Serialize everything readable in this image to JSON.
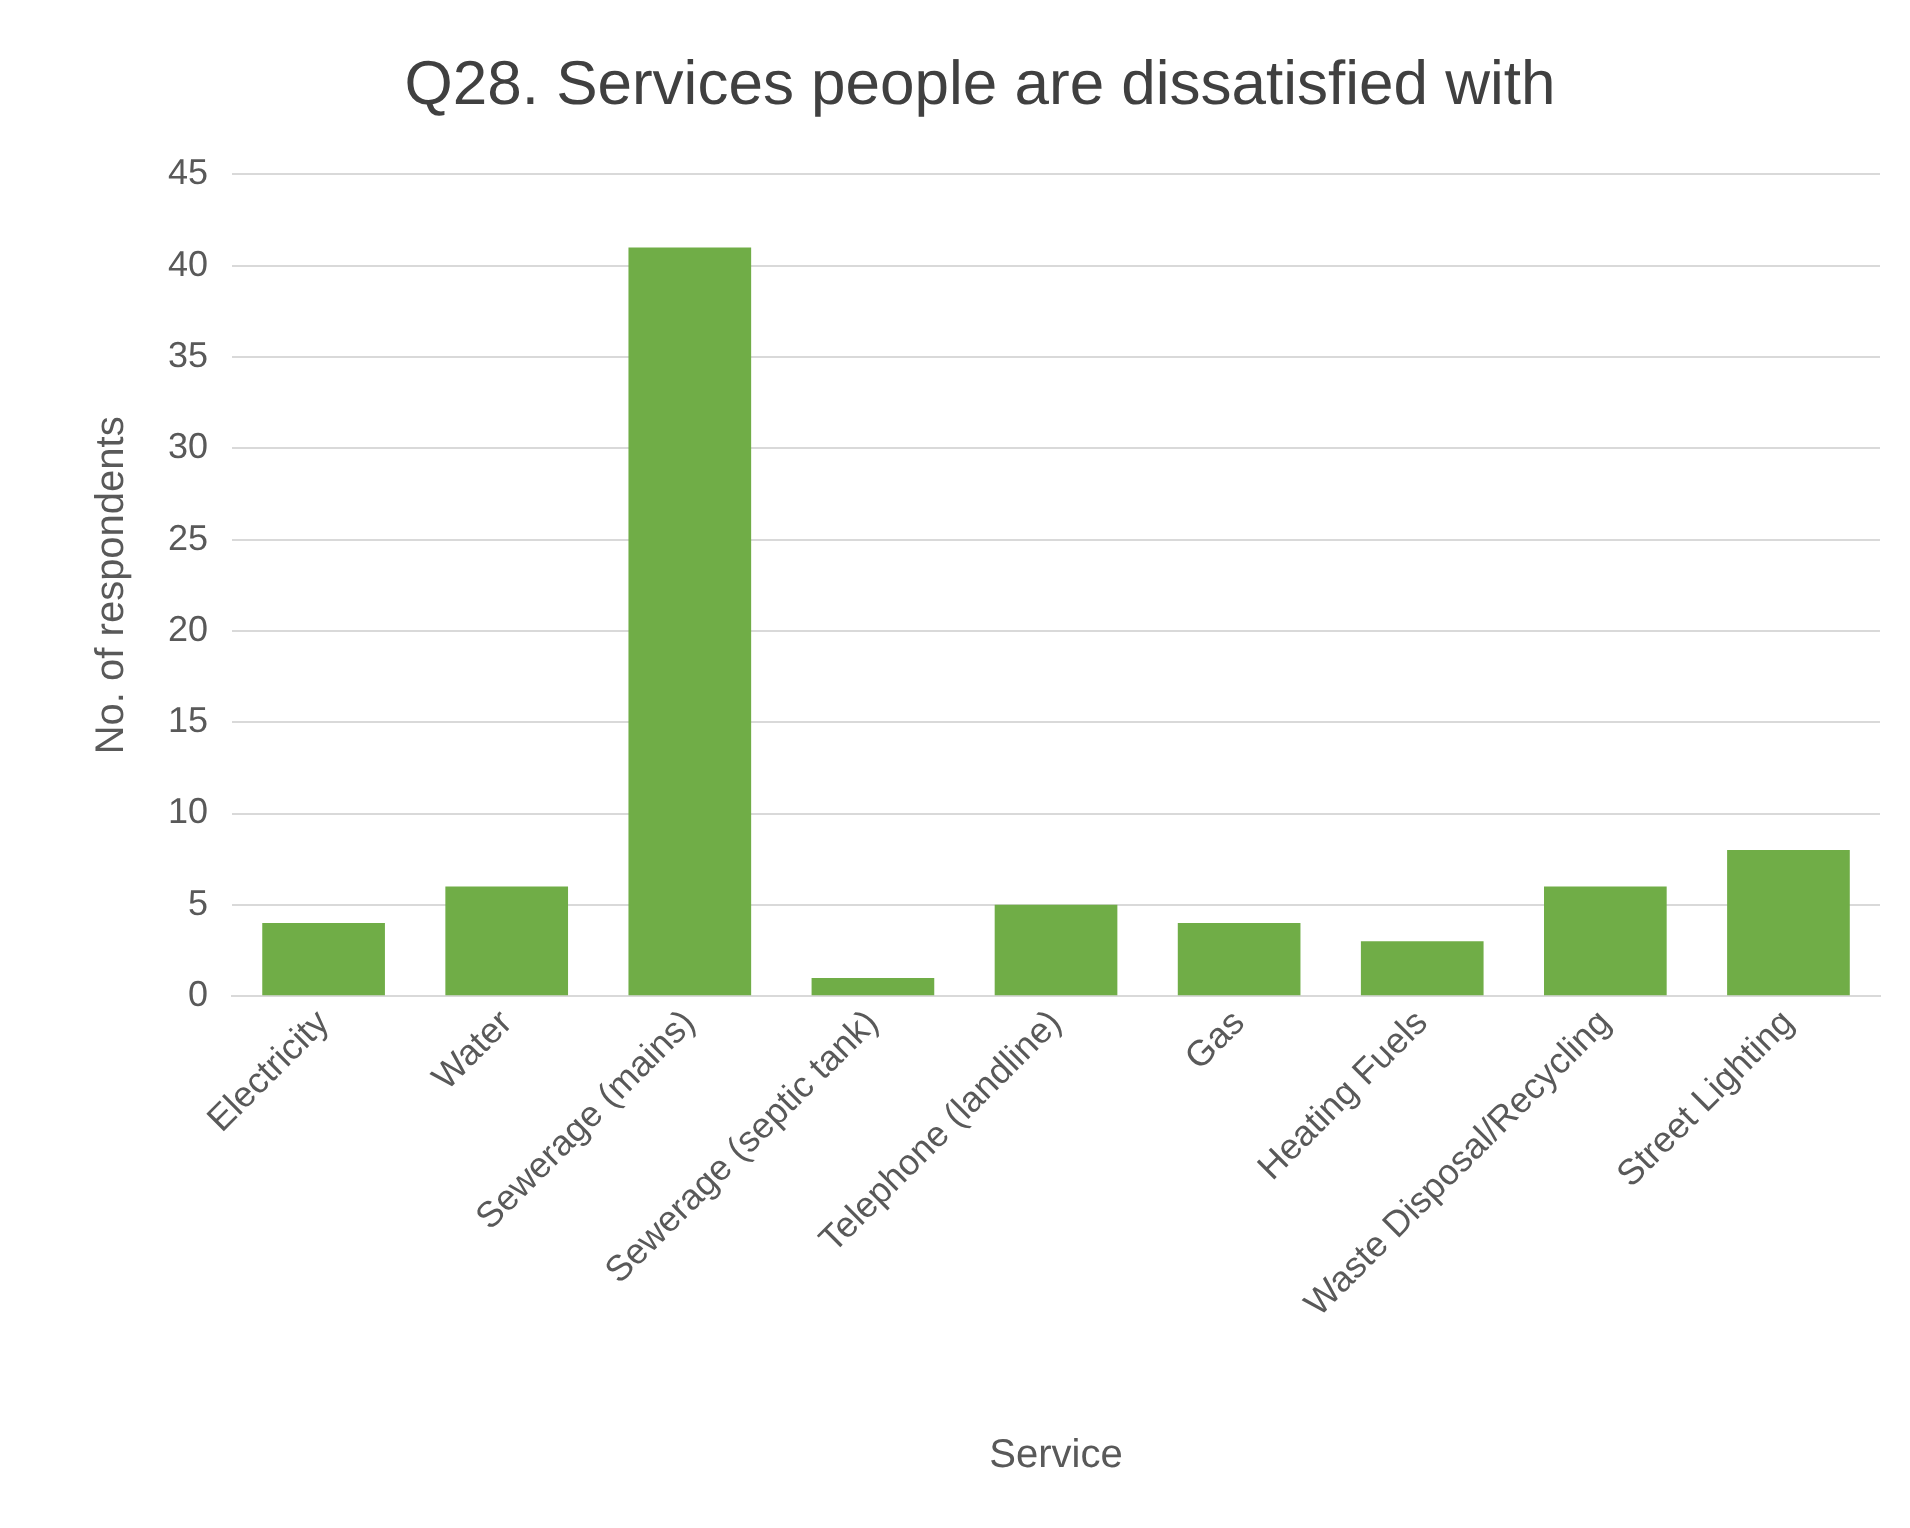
{
  "chart_data": {
    "type": "bar",
    "title": "Q28. Services people are dissatisfied with",
    "xlabel": "Service",
    "ylabel": "No. of respondents",
    "categories": [
      "Electricity",
      "Water",
      "Sewerage (mains)",
      "Sewerage (septic tank)",
      "Telephone (landline)",
      "Gas",
      "Heating Fuels",
      "Waste Disposal/Recycling",
      "Street Lighting"
    ],
    "values": [
      4,
      6,
      41,
      1,
      5,
      4,
      3,
      6,
      8
    ],
    "color": "#70ad47",
    "ylim": [
      0,
      45
    ],
    "yticks": [
      0,
      5,
      10,
      15,
      20,
      25,
      30,
      35,
      40,
      45
    ],
    "grid": "y"
  }
}
